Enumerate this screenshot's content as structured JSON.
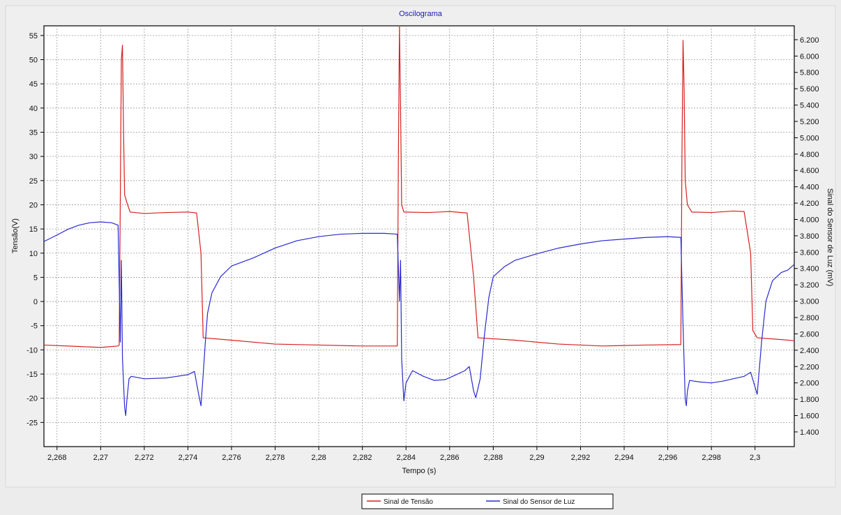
{
  "chart_data": {
    "type": "line",
    "title": "Oscilograma",
    "xlabel": "Tempo (s)",
    "ylabel_left": "Tensão(V)",
    "ylabel_right": "Sinal do Sensor de Luz (mV)",
    "xlim": [
      2.2674,
      2.3018
    ],
    "ylim_left": [
      -30,
      57
    ],
    "ylim_right": [
      1220,
      6370
    ],
    "x_ticks": [
      "2,268",
      "2,27",
      "2,272",
      "2,274",
      "2,276",
      "2,278",
      "2,28",
      "2,282",
      "2,284",
      "2,286",
      "2,288",
      "2,29",
      "2,292",
      "2,294",
      "2,296",
      "2,298",
      "2,3"
    ],
    "x_tick_values": [
      2.268,
      2.27,
      2.272,
      2.274,
      2.276,
      2.278,
      2.28,
      2.282,
      2.284,
      2.286,
      2.288,
      2.29,
      2.292,
      2.294,
      2.296,
      2.298,
      2.3
    ],
    "y_left_ticks": [
      "55",
      "50",
      "45",
      "40",
      "35",
      "30",
      "25",
      "20",
      "15",
      "10",
      "5",
      "0",
      "-5",
      "-10",
      "-15",
      "-20",
      "-25"
    ],
    "y_left_tick_values": [
      55,
      50,
      45,
      40,
      35,
      30,
      25,
      20,
      15,
      10,
      5,
      0,
      -5,
      -10,
      -15,
      -20,
      -25
    ],
    "y_right_ticks": [
      "6.200",
      "6.000",
      "5.800",
      "5.600",
      "5.400",
      "5.200",
      "5.000",
      "4.800",
      "4.600",
      "4.400",
      "4.200",
      "4.000",
      "3.800",
      "3.600",
      "3.400",
      "3.200",
      "3.000",
      "2.800",
      "2.600",
      "2.400",
      "2.200",
      "2.000",
      "1.800",
      "1.600",
      "1.400"
    ],
    "y_right_tick_values": [
      6200,
      6000,
      5800,
      5600,
      5400,
      5200,
      5000,
      4800,
      4600,
      4400,
      4200,
      4000,
      3800,
      3600,
      3400,
      3200,
      3000,
      2800,
      2600,
      2400,
      2200,
      2000,
      1800,
      1600,
      1400
    ],
    "grid": true,
    "legend_position": "bottom-center",
    "series": [
      {
        "name": "Sinal de Tensão",
        "axis": "left",
        "color": "#d62020",
        "points": [
          [
            2.2674,
            -9.0
          ],
          [
            2.269,
            -9.3
          ],
          [
            2.27,
            -9.5
          ],
          [
            2.2708,
            -9.2
          ],
          [
            2.27085,
            -9.0
          ],
          [
            2.27095,
            50
          ],
          [
            2.271,
            53
          ],
          [
            2.27105,
            35
          ],
          [
            2.2711,
            22
          ],
          [
            2.2712,
            20.5
          ],
          [
            2.27135,
            18.5
          ],
          [
            2.272,
            18.2
          ],
          [
            2.273,
            18.4
          ],
          [
            2.274,
            18.5
          ],
          [
            2.2744,
            18.3
          ],
          [
            2.2746,
            10
          ],
          [
            2.2747,
            -7.5
          ],
          [
            2.276,
            -8.0
          ],
          [
            2.278,
            -8.8
          ],
          [
            2.28,
            -9.0
          ],
          [
            2.282,
            -9.2
          ],
          [
            2.2836,
            -9.2
          ],
          [
            2.28365,
            30
          ],
          [
            2.2837,
            57
          ],
          [
            2.28375,
            40
          ],
          [
            2.2838,
            20
          ],
          [
            2.2839,
            18.5
          ],
          [
            2.285,
            18.4
          ],
          [
            2.286,
            18.6
          ],
          [
            2.2868,
            18.3
          ],
          [
            2.2871,
            5
          ],
          [
            2.2873,
            -7.5
          ],
          [
            2.289,
            -8.0
          ],
          [
            2.291,
            -8.8
          ],
          [
            2.293,
            -9.2
          ],
          [
            2.295,
            -9.0
          ],
          [
            2.2966,
            -8.9
          ],
          [
            2.29665,
            30
          ],
          [
            2.2967,
            54
          ],
          [
            2.29675,
            44
          ],
          [
            2.2968,
            25
          ],
          [
            2.2969,
            20
          ],
          [
            2.2971,
            18.5
          ],
          [
            2.298,
            18.4
          ],
          [
            2.299,
            18.7
          ],
          [
            2.2995,
            18.6
          ],
          [
            2.2998,
            10
          ],
          [
            2.2999,
            -6
          ],
          [
            2.3001,
            -7.5
          ],
          [
            2.301,
            -7.8
          ],
          [
            2.3018,
            -8.1
          ]
        ]
      },
      {
        "name": "Sinal do Sensor de Luz",
        "axis": "right",
        "color": "#2a2acf",
        "points": [
          [
            2.2674,
            3730
          ],
          [
            2.268,
            3810
          ],
          [
            2.2685,
            3880
          ],
          [
            2.269,
            3930
          ],
          [
            2.2695,
            3960
          ],
          [
            2.27,
            3970
          ],
          [
            2.2705,
            3960
          ],
          [
            2.2708,
            3930
          ],
          [
            2.2709,
            2500
          ],
          [
            2.27095,
            3500
          ],
          [
            2.271,
            2300
          ],
          [
            2.2711,
            1700
          ],
          [
            2.27115,
            1600
          ],
          [
            2.2712,
            1780
          ],
          [
            2.2713,
            2050
          ],
          [
            2.2714,
            2080
          ],
          [
            2.272,
            2050
          ],
          [
            2.273,
            2060
          ],
          [
            2.2735,
            2080
          ],
          [
            2.274,
            2100
          ],
          [
            2.2743,
            2140
          ],
          [
            2.2745,
            1850
          ],
          [
            2.2746,
            1720
          ],
          [
            2.2747,
            2100
          ],
          [
            2.2748,
            2500
          ],
          [
            2.2749,
            2850
          ],
          [
            2.2751,
            3100
          ],
          [
            2.2755,
            3300
          ],
          [
            2.276,
            3430
          ],
          [
            2.277,
            3530
          ],
          [
            2.278,
            3650
          ],
          [
            2.279,
            3740
          ],
          [
            2.28,
            3790
          ],
          [
            2.281,
            3820
          ],
          [
            2.282,
            3830
          ],
          [
            2.283,
            3830
          ],
          [
            2.2836,
            3820
          ],
          [
            2.2837,
            3000
          ],
          [
            2.28375,
            3500
          ],
          [
            2.2838,
            2300
          ],
          [
            2.2839,
            1780
          ],
          [
            2.284,
            2000
          ],
          [
            2.2843,
            2150
          ],
          [
            2.2848,
            2080
          ],
          [
            2.2853,
            2030
          ],
          [
            2.2858,
            2040
          ],
          [
            2.2863,
            2100
          ],
          [
            2.2867,
            2150
          ],
          [
            2.2869,
            2200
          ],
          [
            2.2871,
            1900
          ],
          [
            2.2872,
            1820
          ],
          [
            2.2874,
            2050
          ],
          [
            2.2876,
            2600
          ],
          [
            2.2878,
            3050
          ],
          [
            2.288,
            3300
          ],
          [
            2.2885,
            3420
          ],
          [
            2.289,
            3500
          ],
          [
            2.29,
            3580
          ],
          [
            2.291,
            3650
          ],
          [
            2.292,
            3700
          ],
          [
            2.293,
            3740
          ],
          [
            2.294,
            3760
          ],
          [
            2.295,
            3780
          ],
          [
            2.296,
            3790
          ],
          [
            2.2966,
            3780
          ],
          [
            2.2967,
            2700
          ],
          [
            2.2968,
            1800
          ],
          [
            2.29685,
            1720
          ],
          [
            2.2969,
            1900
          ],
          [
            2.297,
            2030
          ],
          [
            2.2975,
            2010
          ],
          [
            2.298,
            2000
          ],
          [
            2.2985,
            2020
          ],
          [
            2.299,
            2050
          ],
          [
            2.2995,
            2080
          ],
          [
            2.2998,
            2130
          ],
          [
            2.3,
            1950
          ],
          [
            2.3001,
            1860
          ],
          [
            2.3003,
            2500
          ],
          [
            2.3005,
            3000
          ],
          [
            2.3008,
            3250
          ],
          [
            2.3012,
            3350
          ],
          [
            2.3015,
            3380
          ],
          [
            2.3018,
            3450
          ]
        ]
      }
    ]
  },
  "legend": {
    "item1": "Sinal de Tensão",
    "item2": "Sinal do Sensor de Luz"
  },
  "colors": {
    "background": "#ececec",
    "plot_background": "#ffffff",
    "title": "#1a1ab0",
    "grid": "#9a9a9a",
    "voltage": "#d62020",
    "light": "#2a2acf"
  }
}
